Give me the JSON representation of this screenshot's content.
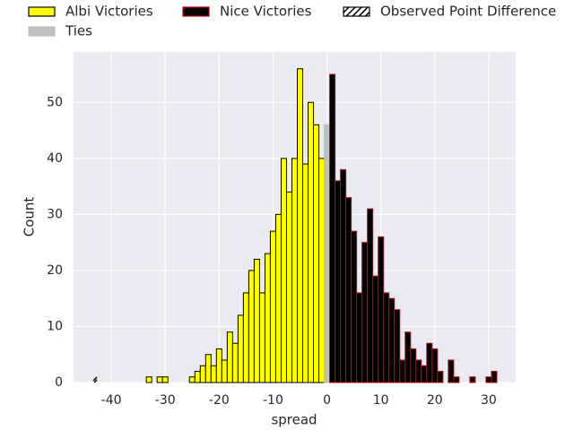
{
  "chart_data": {
    "type": "histogram",
    "xlabel": "spread",
    "ylabel": "Count",
    "xlim": [
      -47,
      35
    ],
    "ylim": [
      0,
      59
    ],
    "xticks": [
      -40,
      -30,
      -20,
      -10,
      0,
      10,
      20,
      30
    ],
    "yticks": [
      0,
      10,
      20,
      30,
      40,
      50
    ],
    "grid": true,
    "series": [
      {
        "name": "Albi Victories",
        "color": "#ffff00",
        "edgecolor": "#000000",
        "bins": [
          -33.5,
          -32.5,
          -31.5,
          -30.5,
          -29.5,
          -28.5,
          -27.5,
          -26.5,
          -25.5,
          -24.5,
          -23.5,
          -22.5,
          -21.5,
          -20.5,
          -19.5,
          -18.5,
          -17.5,
          -16.5,
          -15.5,
          -14.5,
          -13.5,
          -12.5,
          -11.5,
          -10.5,
          -9.5,
          -8.5,
          -7.5,
          -6.5,
          -5.5,
          -4.5,
          -3.5,
          -2.5,
          -1.5,
          -0.5
        ],
        "values": [
          1,
          0,
          1,
          1,
          0,
          0,
          0,
          0,
          1,
          2,
          3,
          5,
          3,
          6,
          4,
          9,
          7,
          12,
          16,
          20,
          22,
          16,
          23,
          27,
          30,
          40,
          34,
          40,
          56,
          39,
          50,
          46,
          40
        ]
      },
      {
        "name": "Ties",
        "color": "#c0c0c0",
        "edgecolor": "#c0c0c0",
        "bins": [
          -0.5,
          0.5
        ],
        "values": [
          46
        ]
      },
      {
        "name": "Nice Victories",
        "color": "#000000",
        "edgecolor": "#cc0000",
        "bins": [
          0.5,
          1.5,
          2.5,
          3.5,
          4.5,
          5.5,
          6.5,
          7.5,
          8.5,
          9.5,
          10.5,
          11.5,
          12.5,
          13.5,
          14.5,
          15.5,
          16.5,
          17.5,
          18.5,
          19.5,
          20.5,
          21.5,
          22.5,
          23.5,
          24.5,
          25.5,
          26.5,
          27.5,
          28.5,
          29.5,
          30.5,
          31.5
        ],
        "values": [
          55,
          36,
          38,
          33,
          27,
          16,
          25,
          31,
          19,
          26,
          16,
          15,
          13,
          4,
          9,
          6,
          4,
          3,
          7,
          6,
          2,
          0,
          4,
          1,
          0,
          0,
          1,
          0,
          0,
          1,
          2
        ]
      }
    ],
    "marker": {
      "name": "Observed Point Difference",
      "color": "#000000",
      "x": -43
    }
  }
}
